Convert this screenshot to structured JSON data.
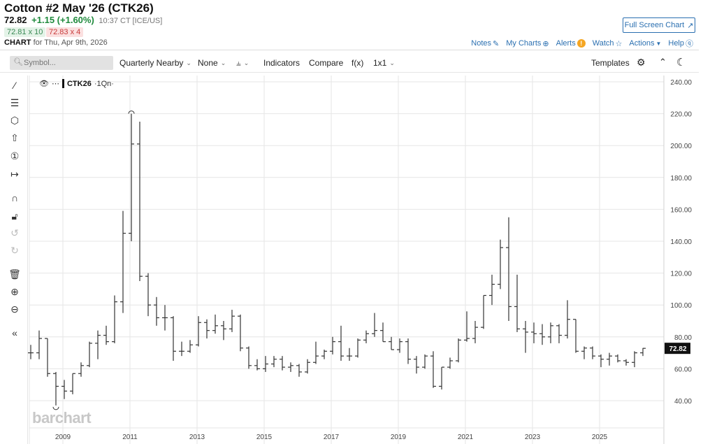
{
  "header": {
    "title": "Cotton #2 May '26 (CTK26)",
    "last": "72.82",
    "change": "+1.15 (+1.60%)",
    "time": "10:37 CT [ICE/US]",
    "bid": "72.81 x 10",
    "ask": "72.83 x 4",
    "chart_label": "CHART",
    "chart_date": "for Thu, Apr 9th, 2026"
  },
  "actions": {
    "full_screen": "Full Screen Chart",
    "notes": "Notes",
    "my_charts": "My Charts",
    "alerts": "Alerts",
    "watch": "Watch",
    "actions": "Actions",
    "help": "Help"
  },
  "toolbar": {
    "symbol_placeholder": "Symbol...",
    "period": "Quarterly Nearby",
    "overlay": "None",
    "indicators": "Indicators",
    "compare": "Compare",
    "fx": "f(x)",
    "layout": "1x1",
    "templates": "Templates"
  },
  "left_tools": [
    "line-tool",
    "fib-tool",
    "polygon-tool",
    "arrow-tool",
    "number-tool",
    "measure-tool",
    "magnet",
    "lock",
    "undo",
    "redo",
    "trash",
    "zoom-in",
    "zoom-out",
    "collapse"
  ],
  "legend": {
    "symbol": "CTK26",
    "interval": "·1Qn·"
  },
  "watermark": "barchart",
  "colors": {
    "accent": "#2a6fb0",
    "up": "#1f8a3c",
    "down": "#c83a3a",
    "bars": "#333333"
  },
  "chart_data": {
    "type": "ohlc",
    "interval": "quarterly",
    "start": "2008-Q1",
    "ylim": [
      20,
      245
    ],
    "y_ticks": [
      "40.00",
      "60.00",
      "80.00",
      "100.00",
      "120.00",
      "140.00",
      "160.00",
      "180.00",
      "200.00",
      "220.00",
      "240.00"
    ],
    "x_ticks": [
      "2009",
      "2011",
      "2013",
      "2015",
      "2017",
      "2019",
      "2021",
      "2023",
      "2025"
    ],
    "last_price_label": "72.82",
    "grid": true,
    "ohlc": [
      [
        70,
        75,
        66,
        70
      ],
      [
        70,
        84,
        66,
        79
      ],
      [
        79,
        79,
        55,
        57
      ],
      [
        57,
        58,
        37,
        49
      ],
      [
        49,
        53,
        41,
        46
      ],
      [
        46,
        57,
        44,
        57
      ],
      [
        57,
        64,
        55,
        62
      ],
      [
        62,
        77,
        61,
        76
      ],
      [
        76,
        84,
        66,
        81
      ],
      [
        81,
        87,
        75,
        77
      ],
      [
        77,
        106,
        76,
        102
      ],
      [
        102,
        159,
        95,
        145
      ],
      [
        145,
        220,
        140,
        201
      ],
      [
        201,
        215,
        115,
        118
      ],
      [
        118,
        120,
        93,
        100
      ],
      [
        100,
        105,
        87,
        92
      ],
      [
        92,
        100,
        84,
        92
      ],
      [
        92,
        93,
        65,
        71
      ],
      [
        71,
        77,
        68,
        71
      ],
      [
        71,
        78,
        70,
        75
      ],
      [
        75,
        93,
        74,
        89
      ],
      [
        89,
        91,
        79,
        84
      ],
      [
        84,
        94,
        82,
        87
      ],
      [
        87,
        90,
        78,
        85
      ],
      [
        85,
        97,
        83,
        93
      ],
      [
        93,
        94,
        71,
        73
      ],
      [
        73,
        74,
        60,
        62
      ],
      [
        62,
        66,
        59,
        60
      ],
      [
        60,
        68,
        58,
        63
      ],
      [
        63,
        68,
        61,
        66
      ],
      [
        66,
        68,
        59,
        61
      ],
      [
        61,
        64,
        58,
        62
      ],
      [
        62,
        63,
        55,
        58
      ],
      [
        58,
        66,
        57,
        64
      ],
      [
        64,
        77,
        63,
        68
      ],
      [
        68,
        72,
        66,
        71
      ],
      [
        71,
        80,
        69,
        77
      ],
      [
        77,
        87,
        65,
        68
      ],
      [
        68,
        73,
        65,
        68
      ],
      [
        68,
        79,
        67,
        78
      ],
      [
        78,
        84,
        76,
        82
      ],
      [
        82,
        95,
        80,
        84
      ],
      [
        84,
        89,
        77,
        77
      ],
      [
        77,
        80,
        72,
        72
      ],
      [
        72,
        79,
        70,
        77
      ],
      [
        77,
        79,
        63,
        66
      ],
      [
        66,
        68,
        57,
        61
      ],
      [
        61,
        69,
        60,
        68
      ],
      [
        68,
        71,
        48,
        49
      ],
      [
        49,
        61,
        47,
        61
      ],
      [
        61,
        67,
        60,
        65
      ],
      [
        65,
        79,
        64,
        78
      ],
      [
        78,
        96,
        77,
        79
      ],
      [
        79,
        90,
        76,
        86
      ],
      [
        86,
        106,
        85,
        106
      ],
      [
        106,
        119,
        100,
        113
      ],
      [
        113,
        141,
        110,
        136
      ],
      [
        136,
        155,
        90,
        99
      ],
      [
        99,
        119,
        83,
        85
      ],
      [
        85,
        90,
        70,
        83
      ],
      [
        83,
        89,
        76,
        82
      ],
      [
        82,
        88,
        75,
        80
      ],
      [
        80,
        89,
        76,
        87
      ],
      [
        87,
        88,
        76,
        81
      ],
      [
        81,
        103,
        79,
        91
      ],
      [
        91,
        91,
        70,
        71
      ],
      [
        71,
        74,
        66,
        73
      ],
      [
        73,
        74,
        66,
        68
      ],
      [
        68,
        69,
        61,
        66
      ],
      [
        66,
        70,
        62,
        68
      ],
      [
        68,
        69,
        64,
        65
      ],
      [
        65,
        66,
        62,
        64
      ],
      [
        64,
        71,
        61,
        70
      ],
      [
        70,
        73,
        68,
        72.82
      ]
    ]
  }
}
